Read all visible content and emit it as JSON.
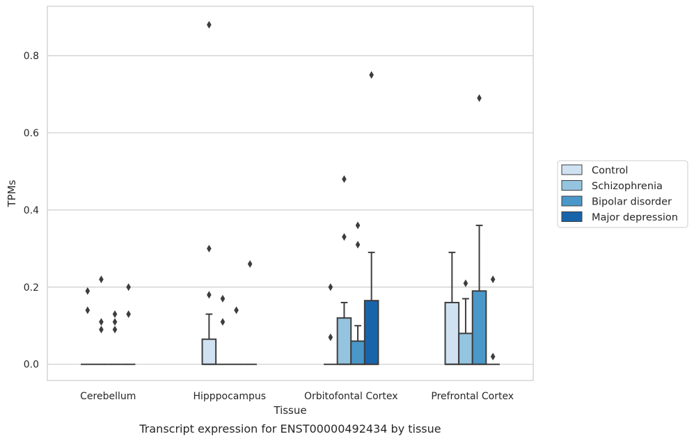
{
  "chart_data": {
    "type": "box",
    "caption": "Transcript expression for ENST00000492434 by tissue",
    "xlabel": "Tissue",
    "ylabel": "TPMs",
    "ylim": [
      -0.042,
      0.928
    ],
    "yticks": [
      0.0,
      0.2,
      0.4,
      0.6,
      0.8
    ],
    "ytick_labels": [
      "0.0",
      "0.2",
      "0.4",
      "0.6",
      "0.8"
    ],
    "grid": "horizontal",
    "legend_position": "right",
    "categories": [
      "Cerebellum",
      "Hipppocampus",
      "Orbitofontal Cortex",
      "Prefrontal Cortex"
    ],
    "series": [
      {
        "name": "Control",
        "color": "#d0e1f2",
        "boxes": [
          {
            "q1": 0,
            "median": 0,
            "q3": 0,
            "whisker_low": 0,
            "whisker_high": 0,
            "outliers": [
              0.19,
              0.14
            ]
          },
          {
            "q1": 0,
            "median": 0,
            "q3": 0.065,
            "whisker_low": 0,
            "whisker_high": 0.13,
            "outliers": [
              0.88,
              0.3,
              0.18
            ]
          },
          {
            "q1": 0,
            "median": 0,
            "q3": 0,
            "whisker_low": 0,
            "whisker_high": 0,
            "outliers": [
              0.2,
              0.07
            ]
          },
          {
            "q1": 0,
            "median": 0,
            "q3": 0.16,
            "whisker_low": 0,
            "whisker_high": 0.29,
            "outliers": []
          }
        ]
      },
      {
        "name": "Schizophrenia",
        "color": "#94c4df",
        "boxes": [
          {
            "q1": 0,
            "median": 0,
            "q3": 0,
            "whisker_low": 0,
            "whisker_high": 0,
            "outliers": [
              0.22,
              0.11,
              0.09
            ]
          },
          {
            "q1": 0,
            "median": 0,
            "q3": 0,
            "whisker_low": 0,
            "whisker_high": 0,
            "outliers": [
              0.17,
              0.11
            ]
          },
          {
            "q1": 0,
            "median": 0,
            "q3": 0.12,
            "whisker_low": 0,
            "whisker_high": 0.16,
            "outliers": [
              0.48,
              0.33
            ]
          },
          {
            "q1": 0,
            "median": 0,
            "q3": 0.08,
            "whisker_low": 0,
            "whisker_high": 0.17,
            "outliers": [
              0.21
            ]
          }
        ]
      },
      {
        "name": "Bipolar disorder",
        "color": "#4a98c9",
        "boxes": [
          {
            "q1": 0,
            "median": 0,
            "q3": 0,
            "whisker_low": 0,
            "whisker_high": 0,
            "outliers": [
              0.13,
              0.11,
              0.09
            ]
          },
          {
            "q1": 0,
            "median": 0,
            "q3": 0,
            "whisker_low": 0,
            "whisker_high": 0,
            "outliers": [
              0.14
            ]
          },
          {
            "q1": 0,
            "median": 0,
            "q3": 0.06,
            "whisker_low": 0,
            "whisker_high": 0.1,
            "outliers": [
              0.36,
              0.31
            ]
          },
          {
            "q1": 0,
            "median": 0,
            "q3": 0.19,
            "whisker_low": 0,
            "whisker_high": 0.36,
            "outliers": [
              0.69
            ]
          }
        ]
      },
      {
        "name": "Major depression",
        "color": "#1764ab",
        "boxes": [
          {
            "q1": 0,
            "median": 0,
            "q3": 0,
            "whisker_low": 0,
            "whisker_high": 0,
            "outliers": [
              0.2,
              0.13
            ]
          },
          {
            "q1": 0,
            "median": 0,
            "q3": 0,
            "whisker_low": 0,
            "whisker_high": 0,
            "outliers": [
              0.26
            ]
          },
          {
            "q1": 0,
            "median": 0,
            "q3": 0.165,
            "whisker_low": 0,
            "whisker_high": 0.29,
            "outliers": [
              0.75
            ]
          },
          {
            "q1": 0,
            "median": 0,
            "q3": 0,
            "whisker_low": 0,
            "whisker_high": 0,
            "outliers": [
              0.22,
              0.02
            ]
          }
        ]
      }
    ]
  }
}
